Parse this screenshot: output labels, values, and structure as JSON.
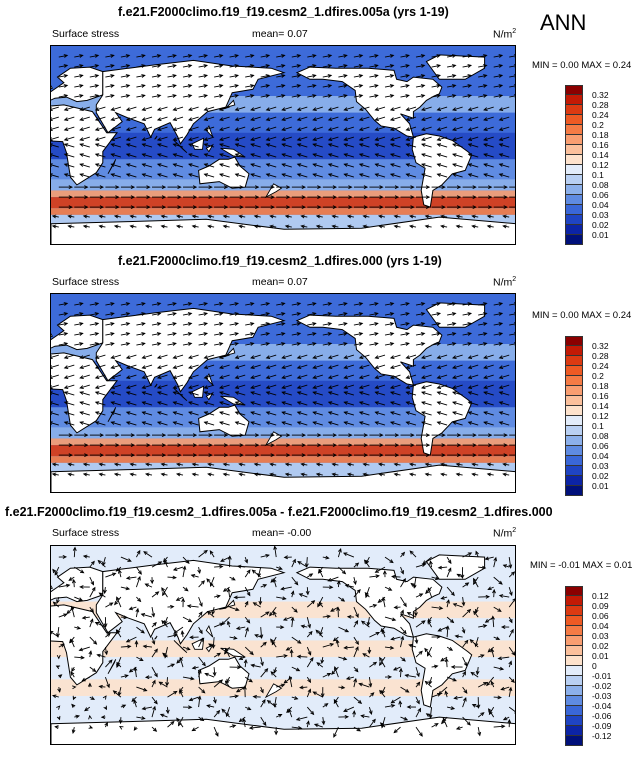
{
  "annotation": "ANN",
  "panels": [
    {
      "title": "f.e21.F2000climo.f19_f19.cesm2_1.dfires.005a (yrs 1-19)",
      "variable": "Surface stress",
      "mean": "mean=  0.07",
      "units": "N/m",
      "units_sup": "2",
      "minmax": "MIN =  0.00 MAX =  0.24",
      "colorbar_levels": [
        "0.32",
        "0.28",
        "0.24",
        "0.2",
        "0.18",
        "0.16",
        "0.14",
        "0.12",
        "0.1",
        "0.08",
        "0.06",
        "0.04",
        "0.03",
        "0.02",
        "0.01"
      ],
      "colorbar_colors": [
        "#8b0000",
        "#c31a05",
        "#dc3a12",
        "#ee5a24",
        "#f57b45",
        "#f99e71",
        "#fbc09c",
        "#fde2cc",
        "#e2ecfa",
        "#b9d0f3",
        "#8cb0eb",
        "#5f8be2",
        "#3a67d8",
        "#1f44c3",
        "#0c24a6",
        "#00107a"
      ]
    },
    {
      "title": "f.e21.F2000climo.f19_f19.cesm2_1.dfires.000 (yrs 1-19)",
      "variable": "Surface stress",
      "mean": "mean=  0.07",
      "units": "N/m",
      "units_sup": "2",
      "minmax": "MIN =  0.00 MAX =  0.24",
      "colorbar_levels": [
        "0.32",
        "0.28",
        "0.24",
        "0.2",
        "0.18",
        "0.16",
        "0.14",
        "0.12",
        "0.1",
        "0.08",
        "0.06",
        "0.04",
        "0.03",
        "0.02",
        "0.01"
      ],
      "colorbar_colors": [
        "#8b0000",
        "#c31a05",
        "#dc3a12",
        "#ee5a24",
        "#f57b45",
        "#f99e71",
        "#fbc09c",
        "#fde2cc",
        "#e2ecfa",
        "#b9d0f3",
        "#8cb0eb",
        "#5f8be2",
        "#3a67d8",
        "#1f44c3",
        "#0c24a6",
        "#00107a"
      ]
    },
    {
      "title": "f.e21.F2000climo.f19_f19.cesm2_1.dfires.005a - f.e21.F2000climo.f19_f19.cesm2_1.dfires.000",
      "variable": "Surface stress",
      "mean": "mean=  -0.00",
      "units": "N/m",
      "units_sup": "2",
      "minmax": "MIN =  -0.01 MAX =  0.01",
      "colorbar_levels": [
        "0.12",
        "0.09",
        "0.06",
        "0.04",
        "0.03",
        "0.02",
        "0.01",
        "0",
        "-0.01",
        "-0.02",
        "-0.03",
        "-0.04",
        "-0.06",
        "-0.09",
        "-0.12"
      ],
      "colorbar_colors": [
        "#8b0000",
        "#c31a05",
        "#dc3a12",
        "#ee5a24",
        "#f57b45",
        "#f99e71",
        "#fbc09c",
        "#fde2cc",
        "#e2ecfa",
        "#b9d0f3",
        "#8cb0eb",
        "#5f8be2",
        "#3a67d8",
        "#1f44c3",
        "#0c24a6",
        "#00107a"
      ]
    }
  ],
  "chart_data": [
    {
      "type": "heatmap",
      "title": "f.e21.F2000climo.f19_f19.cesm2_1.dfires.005a (yrs 1-19)",
      "variable": "Surface stress",
      "units": "N/m2",
      "mean": 0.07,
      "min": 0.0,
      "max": 0.24,
      "contour_levels": [
        0.01,
        0.02,
        0.03,
        0.04,
        0.06,
        0.08,
        0.1,
        0.12,
        0.14,
        0.16,
        0.18,
        0.2,
        0.24,
        0.28,
        0.32
      ],
      "overlay": "vectors (wind stress direction)"
    },
    {
      "type": "heatmap",
      "title": "f.e21.F2000climo.f19_f19.cesm2_1.dfires.000 (yrs 1-19)",
      "variable": "Surface stress",
      "units": "N/m2",
      "mean": 0.07,
      "min": 0.0,
      "max": 0.24,
      "contour_levels": [
        0.01,
        0.02,
        0.03,
        0.04,
        0.06,
        0.08,
        0.1,
        0.12,
        0.14,
        0.16,
        0.18,
        0.2,
        0.24,
        0.28,
        0.32
      ],
      "overlay": "vectors (wind stress direction)"
    },
    {
      "type": "heatmap",
      "title": "f.e21.F2000climo.f19_f19.cesm2_1.dfires.005a - f.e21.F2000climo.f19_f19.cesm2_1.dfires.000",
      "variable": "Surface stress",
      "units": "N/m2",
      "mean": -0.0,
      "min": -0.01,
      "max": 0.01,
      "contour_levels": [
        -0.12,
        -0.09,
        -0.06,
        -0.04,
        -0.03,
        -0.02,
        -0.01,
        0,
        0.01,
        0.02,
        0.03,
        0.04,
        0.06,
        0.09,
        0.12
      ],
      "overlay": "vectors (difference in wind stress)"
    }
  ]
}
